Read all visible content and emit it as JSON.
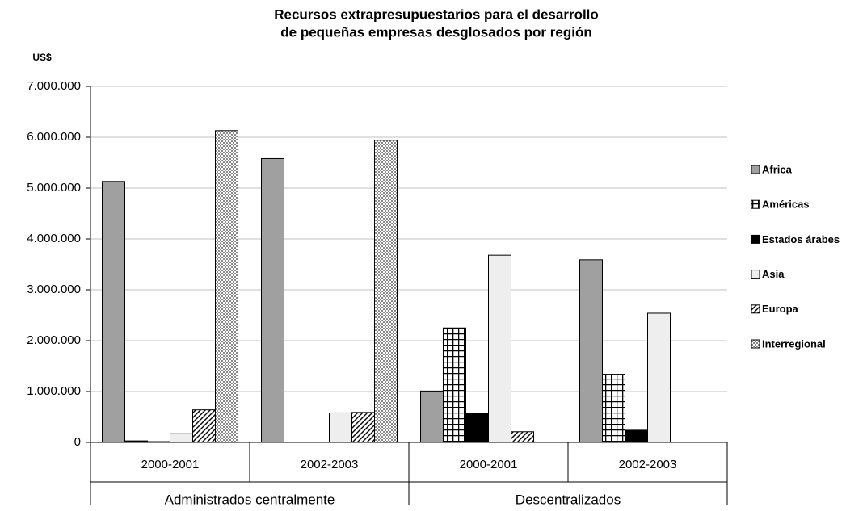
{
  "chart_data": {
    "type": "bar",
    "title": [
      "Recursos extrapresupuestarios para el desarrollo",
      "de pequeñas empresas desglosados por región"
    ],
    "y_label": "US$",
    "categories": [
      "2000-2001",
      "2002-2003",
      "2000-2001",
      "2002-2003"
    ],
    "category_groups": [
      "Administrados centralmente",
      "Descentralizados"
    ],
    "series": [
      {
        "name": "Africa",
        "color": "#a0a0a0",
        "values": [
          5130000,
          5580000,
          1010000,
          3590000
        ]
      },
      {
        "name": "Américas",
        "color": "#ffffff",
        "pattern": "grid",
        "values": [
          30000,
          0,
          2250000,
          1340000
        ]
      },
      {
        "name": "Estados árabes",
        "color": "#000000",
        "values": [
          15000,
          0,
          570000,
          240000
        ]
      },
      {
        "name": "Asia",
        "color": "#eeeeee",
        "values": [
          170000,
          580000,
          3680000,
          2540000
        ]
      },
      {
        "name": "Europa",
        "color": "#ffffff",
        "pattern": "hatch",
        "values": [
          640000,
          590000,
          210000,
          0
        ]
      },
      {
        "name": "Interregional",
        "color": "#ffffff",
        "pattern": "checker",
        "values": [
          6130000,
          5940000,
          0,
          0
        ]
      }
    ],
    "ylim": [
      0,
      7000000
    ],
    "yticks": [
      0,
      {
        "value": 1000000,
        "label": "1.000.000"
      },
      {
        "value": 2000000,
        "label": "2.000.000"
      },
      {
        "value": 3000000,
        "label": "3.000.000"
      },
      {
        "value": 4000000,
        "label": "4.000.000"
      },
      {
        "value": 5000000,
        "label": "5.000.000"
      },
      {
        "value": 6000000,
        "label": "6.000.000"
      },
      {
        "value": 7000000,
        "label": "7.000.000"
      }
    ],
    "grid": true,
    "legend": "right"
  }
}
